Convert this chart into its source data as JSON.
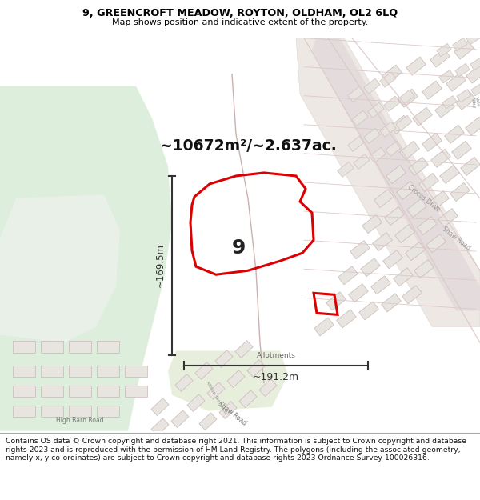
{
  "title_line1": "9, GREENCROFT MEADOW, ROYTON, OLDHAM, OL2 6LQ",
  "title_line2": "Map shows position and indicative extent of the property.",
  "footer_text": "Contains OS data © Crown copyright and database right 2021. This information is subject to Crown copyright and database rights 2023 and is reproduced with the permission of HM Land Registry. The polygons (including the associated geometry, namely x, y co-ordinates) are subject to Crown copyright and database rights 2023 Ordnance Survey 100026316.",
  "area_label": "~10672m²/~2.637ac.",
  "plot_number": "9",
  "dim_horizontal": "~191.2m",
  "dim_vertical": "~169.5m",
  "allotments_label": "Allotments",
  "map_bg": "#f0eeea",
  "green1_color": "#ddeedd",
  "green2_color": "#e8f0e8",
  "plot_fill": "none",
  "plot_outline": "#dd0000",
  "road_line": "#e8b0b0",
  "building_fill": "#e8e4e0",
  "building_edge": "#c8b8b8",
  "dim_color": "#333333",
  "title_bg": "#ffffff",
  "footer_bg": "#ffffff",
  "label_color": "#555555",
  "road_stripe": "#e0d0d0"
}
